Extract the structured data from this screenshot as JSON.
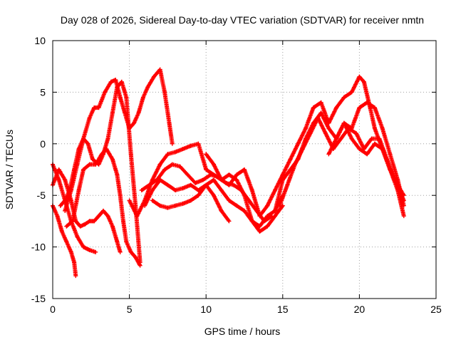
{
  "chart_data": {
    "type": "scatter",
    "title": "Day 028 of 2026, Sidereal Day-to-day VTEC variation (SDTVAR) for receiver nmtn",
    "xlabel": "GPS time / hours",
    "ylabel": "SDTVAR / TECUs",
    "xlim": [
      0,
      25
    ],
    "ylim": [
      -15,
      10
    ],
    "xticks": [
      0,
      5,
      10,
      15,
      20,
      25
    ],
    "yticks": [
      -15,
      -10,
      -5,
      0,
      5,
      10
    ],
    "grid": true,
    "marker": "+",
    "color": "#ff0000",
    "series": [
      {
        "x": [
          0.0,
          0.4,
          0.8,
          1.2,
          1.6,
          2.0,
          2.4,
          2.8
        ],
        "y": [
          -2.0,
          -3.5,
          -5.5,
          -7.5,
          -9.0,
          -10.0,
          -10.3,
          -10.5
        ]
      },
      {
        "x": [
          0.0,
          0.3,
          0.6,
          0.9,
          1.2,
          1.4,
          1.5
        ],
        "y": [
          -6.0,
          -7.0,
          -8.5,
          -9.5,
          -10.5,
          -11.5,
          -12.8
        ]
      },
      {
        "x": [
          0.0,
          0.4,
          0.8,
          1.2,
          1.5,
          1.8,
          2.1,
          2.4,
          2.7,
          3.0,
          3.3,
          3.6,
          3.9,
          4.2,
          4.4
        ],
        "y": [
          -4.0,
          -2.5,
          -3.5,
          -5.5,
          -7.5,
          -8.0,
          -7.8,
          -7.5,
          -7.5,
          -7.0,
          -6.5,
          -7.0,
          -8.0,
          -9.5,
          -10.5
        ]
      },
      {
        "x": [
          0.8,
          1.2,
          1.6,
          2.0,
          2.4,
          2.7,
          3.0,
          3.4,
          3.8,
          4.1,
          4.4,
          4.7,
          5.0,
          5.3,
          5.6,
          5.9,
          6.2,
          6.6,
          7.0,
          7.3,
          7.6,
          7.8
        ],
        "y": [
          -6.5,
          -4.5,
          -2.0,
          0.5,
          2.5,
          3.5,
          3.5,
          5.0,
          6.0,
          6.2,
          4.5,
          3.0,
          1.5,
          2.0,
          3.0,
          4.5,
          5.5,
          6.5,
          7.2,
          5.0,
          2.0,
          0.0
        ]
      },
      {
        "x": [
          0.5,
          0.8,
          1.1,
          1.4,
          1.7,
          2.0,
          2.3,
          2.6,
          3.0,
          3.3,
          3.6,
          3.9,
          4.2,
          4.5,
          4.8,
          5.1,
          5.4,
          5.7
        ],
        "y": [
          -6.0,
          -5.5,
          -4.5,
          -2.5,
          -0.5,
          0.5,
          0.0,
          -1.5,
          -2.0,
          -1.0,
          0.5,
          3.0,
          5.5,
          6.0,
          4.5,
          -1.0,
          -6.0,
          -11.5
        ]
      },
      {
        "x": [
          0.9,
          1.3,
          1.7,
          2.0,
          2.4,
          2.8,
          3.2,
          3.5,
          3.9,
          4.2,
          4.4,
          4.6,
          4.8,
          5.1,
          5.4,
          5.7
        ],
        "y": [
          -8.0,
          -7.5,
          -4.5,
          -2.5,
          -2.0,
          -2.0,
          -1.0,
          -0.5,
          -1.5,
          -3.0,
          -5.0,
          -7.5,
          -9.5,
          -10.5,
          -11.0,
          -11.8
        ]
      },
      {
        "x": [
          5.0,
          5.5,
          6.0,
          6.5,
          7.0,
          7.5,
          8.0,
          8.5,
          9.0,
          9.5,
          10.0,
          10.5,
          11.0,
          11.5,
          12.0,
          12.5,
          13.0,
          13.5,
          14.0,
          14.5,
          15.0
        ],
        "y": [
          -5.5,
          -7.0,
          -5.5,
          -3.5,
          -2.0,
          -1.0,
          -0.8,
          -0.5,
          -0.2,
          0.0,
          -2.5,
          -3.0,
          -3.5,
          -3.0,
          -3.5,
          -5.0,
          -7.5,
          -8.0,
          -7.0,
          -6.5,
          -5.0
        ]
      },
      {
        "x": [
          5.8,
          6.3,
          6.8,
          7.3,
          7.8,
          8.3,
          8.8,
          9.3,
          9.8,
          10.3,
          10.8,
          11.3,
          11.8,
          12.3,
          12.8,
          13.3,
          13.8,
          14.3
        ],
        "y": [
          -4.5,
          -4.0,
          -3.5,
          -2.5,
          -2.0,
          -2.2,
          -3.0,
          -3.8,
          -3.5,
          -3.0,
          -3.2,
          -3.8,
          -4.0,
          -4.5,
          -5.5,
          -6.5,
          -7.5,
          -7.0
        ]
      },
      {
        "x": [
          6.0,
          6.5,
          7.0,
          7.5,
          8.0,
          8.5,
          9.0,
          9.5,
          10.0,
          10.5,
          11.0,
          11.5,
          12.0,
          12.5,
          13.0,
          13.5,
          14.0,
          14.5,
          15.0
        ],
        "y": [
          -6.0,
          -4.5,
          -3.5,
          -4.0,
          -4.5,
          -4.3,
          -4.0,
          -4.5,
          -4.0,
          -3.5,
          -4.5,
          -5.5,
          -6.0,
          -6.5,
          -7.5,
          -8.5,
          -8.0,
          -7.0,
          -6.0
        ]
      },
      {
        "x": [
          6.5,
          7.0,
          7.5,
          8.0,
          8.5,
          9.0,
          9.5,
          10.0,
          10.5,
          11.0,
          11.5
        ],
        "y": [
          -5.5,
          -6.0,
          -6.2,
          -6.0,
          -5.8,
          -5.5,
          -5.0,
          -4.0,
          -5.0,
          -6.5,
          -7.5
        ]
      },
      {
        "x": [
          10.0,
          10.5,
          11.0,
          11.5,
          12.0,
          12.5,
          13.0,
          13.5,
          14.0
        ],
        "y": [
          -1.0,
          -2.0,
          -3.5,
          -4.0,
          -3.0,
          -2.5,
          -4.5,
          -7.0,
          -6.0
        ]
      },
      {
        "x": [
          14.0,
          14.5,
          15.0,
          15.5,
          16.0,
          16.5,
          17.0,
          17.5,
          18.0,
          18.5,
          19.0,
          19.5,
          20.0,
          20.3,
          20.7,
          21.0,
          21.5,
          22.0,
          22.5,
          22.9
        ],
        "y": [
          -6.0,
          -4.5,
          -3.0,
          -1.5,
          0.0,
          1.5,
          3.5,
          4.0,
          2.0,
          3.5,
          4.5,
          5.0,
          6.5,
          6.0,
          3.5,
          1.5,
          -0.5,
          -2.5,
          -4.5,
          -7.0
        ]
      },
      {
        "x": [
          14.5,
          15.0,
          15.5,
          16.0,
          16.5,
          17.0,
          17.5,
          18.0,
          18.5,
          19.0,
          19.5,
          20.0,
          20.5,
          21.0,
          21.5,
          22.0,
          22.5,
          22.9
        ],
        "y": [
          -6.5,
          -3.5,
          -2.5,
          -1.5,
          0.5,
          2.0,
          3.0,
          1.5,
          0.5,
          2.0,
          1.5,
          3.5,
          4.0,
          3.5,
          1.5,
          -1.0,
          -3.5,
          -6.0
        ]
      },
      {
        "x": [
          14.8,
          15.3,
          15.8,
          16.3,
          16.8,
          17.3,
          17.8,
          18.3,
          18.8,
          19.3,
          19.8,
          20.3,
          20.8,
          21.3,
          21.8,
          22.3,
          22.9
        ],
        "y": [
          -6.0,
          -4.0,
          -2.0,
          -0.5,
          1.0,
          2.5,
          1.0,
          -0.5,
          0.5,
          1.5,
          1.0,
          -0.5,
          0.5,
          0.5,
          -1.5,
          -3.5,
          -5.5
        ]
      },
      {
        "x": [
          18.0,
          18.5,
          19.0,
          19.5,
          20.0,
          20.5,
          21.0,
          21.5,
          22.0,
          22.5,
          22.9
        ],
        "y": [
          -1.0,
          0.5,
          2.0,
          0.5,
          -0.5,
          -1.0,
          0.0,
          -0.5,
          -2.5,
          -4.0,
          -5.0
        ]
      }
    ]
  }
}
